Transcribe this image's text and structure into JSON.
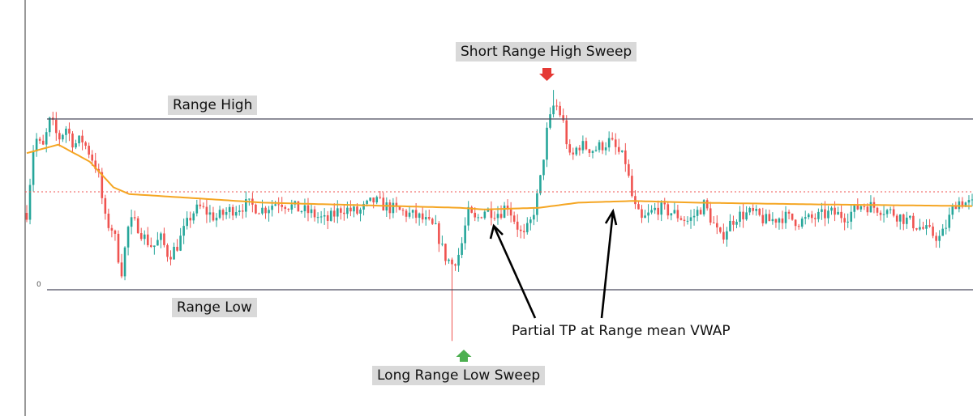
{
  "chart_data": {
    "type": "candlestick",
    "title": "",
    "xlabel": "",
    "ylabel": "",
    "y_tick_labels": [
      "0"
    ],
    "grid": false,
    "legend": "none",
    "levels": {
      "range_high": 100,
      "range_low": 0,
      "range_mean": 50,
      "vwap_end": 49
    },
    "annotations": {
      "range_high": "Range High",
      "range_low": "Range Low",
      "short_sweep": "Short Range High Sweep",
      "long_sweep": "Long Range Low Sweep",
      "partial_tp": "Partial TP at Range mean VWAP"
    },
    "price_path": [
      [
        0,
        45
      ],
      [
        1,
        90
      ],
      [
        2,
        82
      ],
      [
        3,
        100
      ],
      [
        4,
        88
      ],
      [
        5,
        95
      ],
      [
        6,
        85
      ],
      [
        7,
        88
      ],
      [
        8,
        80
      ],
      [
        9,
        70
      ],
      [
        10,
        40
      ],
      [
        11,
        35
      ],
      [
        12,
        10
      ],
      [
        13,
        40
      ],
      [
        14,
        38
      ],
      [
        15,
        30
      ],
      [
        16,
        25
      ],
      [
        17,
        30
      ],
      [
        18,
        20
      ],
      [
        19,
        25
      ],
      [
        20,
        35
      ],
      [
        21,
        45
      ],
      [
        22,
        48
      ],
      [
        24,
        42
      ],
      [
        26,
        47
      ],
      [
        28,
        50
      ],
      [
        30,
        47
      ],
      [
        32,
        52
      ],
      [
        34,
        48
      ],
      [
        36,
        45
      ],
      [
        38,
        40
      ],
      [
        40,
        48
      ],
      [
        42,
        45
      ],
      [
        44,
        52
      ],
      [
        46,
        48
      ],
      [
        48,
        45
      ],
      [
        50,
        42
      ],
      [
        52,
        35
      ],
      [
        53,
        20
      ],
      [
        54,
        15
      ],
      [
        55,
        22
      ],
      [
        56,
        45
      ],
      [
        57,
        40
      ],
      [
        58,
        47
      ],
      [
        60,
        45
      ],
      [
        61,
        50
      ],
      [
        62,
        40
      ],
      [
        63,
        30
      ],
      [
        64,
        40
      ],
      [
        65,
        58
      ],
      [
        66,
        92
      ],
      [
        67,
        110
      ],
      [
        68,
        100
      ],
      [
        69,
        75
      ],
      [
        70,
        85
      ],
      [
        72,
        82
      ],
      [
        74,
        87
      ],
      [
        76,
        75
      ],
      [
        77,
        50
      ],
      [
        78,
        40
      ],
      [
        80,
        48
      ],
      [
        82,
        45
      ],
      [
        84,
        40
      ],
      [
        86,
        50
      ],
      [
        88,
        30
      ],
      [
        89,
        37
      ],
      [
        90,
        43
      ],
      [
        92,
        45
      ],
      [
        94,
        40
      ],
      [
        96,
        43
      ],
      [
        98,
        40
      ],
      [
        100,
        42
      ],
      [
        102,
        45
      ],
      [
        104,
        43
      ],
      [
        106,
        50
      ],
      [
        108,
        48
      ],
      [
        110,
        45
      ],
      [
        112,
        40
      ],
      [
        114,
        35
      ],
      [
        116,
        30
      ],
      [
        118,
        52
      ],
      [
        120,
        50
      ]
    ],
    "wick_extremes": {
      "high": {
        "x": 67,
        "y": 117
      },
      "low": {
        "x": 54,
        "y": -30
      }
    },
    "vwap_path": [
      [
        0,
        80
      ],
      [
        4,
        85
      ],
      [
        8,
        75
      ],
      [
        11,
        60
      ],
      [
        13,
        56
      ],
      [
        20,
        54
      ],
      [
        30,
        51
      ],
      [
        55,
        48
      ],
      [
        58,
        47
      ],
      [
        65,
        48
      ],
      [
        70,
        51
      ],
      [
        77,
        52
      ],
      [
        85,
        51
      ],
      [
        100,
        50
      ],
      [
        120,
        49
      ]
    ],
    "colors": {
      "bull": "#26a69a",
      "bear": "#ef5350",
      "vwap": "#f5a623",
      "range_lines": "#4a4a5e",
      "dotted_line": "#ef5350",
      "label_bg": "#d9d9d9",
      "up_marker": "#4caf50",
      "down_marker": "#e53935"
    }
  }
}
